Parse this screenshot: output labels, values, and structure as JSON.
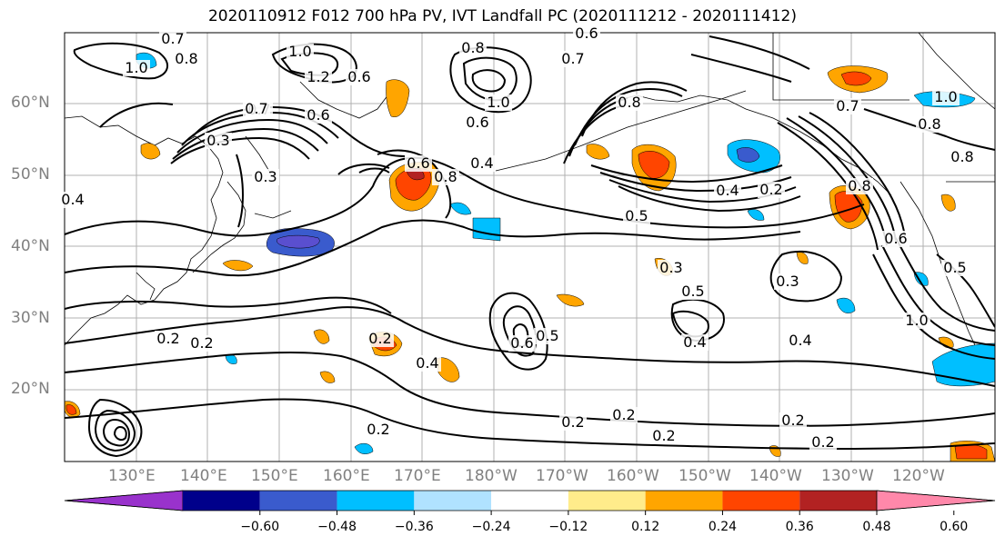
{
  "title": "2020110912 F012 700 hPa PV, IVT Landfall PC (2020111212 - 2020111412)",
  "lat_labels": [
    "60°N",
    "50°N",
    "40°N",
    "30°N",
    "20°N"
  ],
  "lon_labels": [
    "130°E",
    "140°E",
    "150°E",
    "160°E",
    "170°E",
    "180°W",
    "170°W",
    "160°W",
    "150°W",
    "140°W",
    "130°W",
    "120°W"
  ],
  "contour_labels": [
    "0.7",
    "0.8",
    "1.0",
    "0.6",
    "0.7",
    "0.6",
    "1.0",
    "1.2",
    "0.6",
    "0.8",
    "1.0",
    "0.6",
    "0.4",
    "0.8",
    "0.7",
    "0.3",
    "0.3",
    "0.4",
    "0.6",
    "0.8",
    "0.5",
    "0.4",
    "0.2",
    "0.5",
    "0.3",
    "0.3",
    "0.4",
    "0.4",
    "0.2",
    "0.2",
    "0.6",
    "0.5",
    "0.2",
    "0.2",
    "0.2",
    "0.2",
    "0.2",
    "0.2",
    "0.2",
    "0.4",
    "0.5",
    "1.0",
    "0.7",
    "0.8",
    "0.6",
    "0.7",
    "0.8",
    "1.0",
    "0.8"
  ],
  "colorbar": {
    "colors": [
      "#9932cc",
      "#00008b",
      "#3a5bcd",
      "#00bfff",
      "#b0e2ff",
      "#ffffff",
      "#ffec8b",
      "#ffa500",
      "#ff4500",
      "#b22222",
      "#ff88aa"
    ],
    "tick_labels": [
      "−0.60",
      "−0.48",
      "−0.36",
      "−0.24",
      "−0.12",
      "0.12",
      "0.24",
      "0.36",
      "0.48",
      "0.60"
    ]
  },
  "grid": true,
  "line_color": "#000000"
}
